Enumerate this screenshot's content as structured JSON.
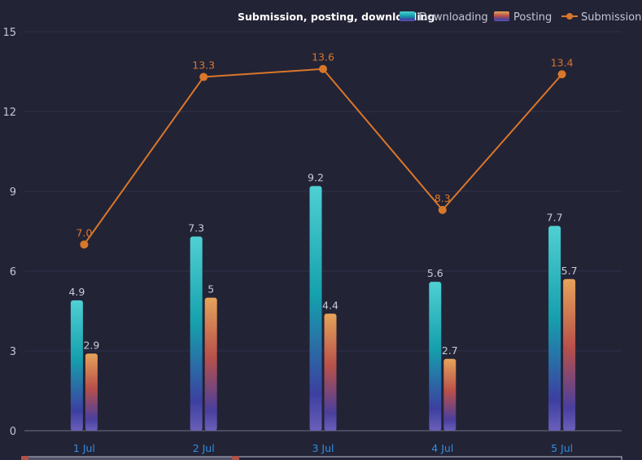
{
  "chart_data": {
    "type": "bar",
    "title": "Submission, posting, downloading",
    "categories": [
      "1 Jul",
      "2 Jul",
      "3 Jul",
      "4 Jul",
      "5 Jul"
    ],
    "ylim": [
      0,
      15
    ],
    "yticks": [
      0,
      3,
      6,
      9,
      12,
      15
    ],
    "grid": true,
    "legend_position": "top-right",
    "series": [
      {
        "name": "Downloading",
        "kind": "bar",
        "values": [
          4.9,
          7.3,
          9.2,
          5.6,
          7.7
        ],
        "labels": [
          "4.9",
          "7.3",
          "9.2",
          "5.6",
          "7.7"
        ]
      },
      {
        "name": "Posting",
        "kind": "bar",
        "values": [
          2.9,
          5,
          4.4,
          2.7,
          5.7
        ],
        "labels": [
          "2.9",
          "5",
          "4.4",
          "2.7",
          "5.7"
        ]
      },
      {
        "name": "Submission",
        "kind": "line",
        "values": [
          7.0,
          13.3,
          13.6,
          8.3,
          13.4
        ],
        "labels": [
          "7.0",
          "13.3",
          "13.6",
          "8.3",
          "13.4"
        ]
      }
    ]
  },
  "colors": {
    "background": "#232336",
    "grid": "#2f3048",
    "axis_text": "#c3c6d6",
    "category_text": "#2f8fe0",
    "data_label": "#c9cbd6",
    "line": "#d9772a",
    "downloading_top": "#4fd0d3",
    "downloading_mid": "#15a0ad",
    "downloading_bottom": "#3c3fa0",
    "posting_top": "#e6a35a",
    "posting_mid": "#b8504a",
    "posting_bottom": "#4a3f9e"
  }
}
